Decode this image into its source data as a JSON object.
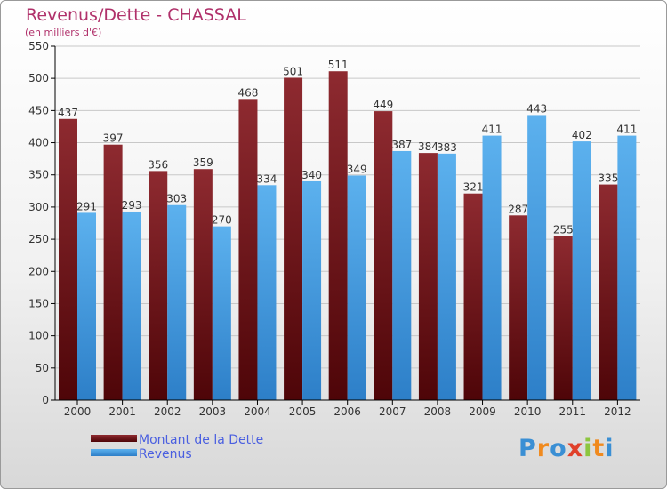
{
  "chart_data": {
    "type": "bar",
    "title": "Revenus/Dette - CHASSAL",
    "subtitle": "(en milliers d'€)",
    "categories": [
      "2000",
      "2001",
      "2002",
      "2003",
      "2004",
      "2005",
      "2006",
      "2007",
      "2008",
      "2009",
      "2010",
      "2011",
      "2012"
    ],
    "series": [
      {
        "name": "Montant de la Dette",
        "values": [
          437,
          397,
          356,
          359,
          468,
          501,
          511,
          449,
          384,
          321,
          287,
          255,
          335
        ],
        "color": "#7a1a1f"
      },
      {
        "name": "Revenus",
        "values": [
          291,
          293,
          303,
          270,
          334,
          340,
          349,
          387,
          383,
          411,
          443,
          402,
          411
        ],
        "color": "#4aa3e6"
      }
    ],
    "ylim": [
      0,
      550
    ],
    "yticks": [
      0,
      50,
      100,
      150,
      200,
      250,
      300,
      350,
      400,
      450,
      500,
      550
    ],
    "grid": true,
    "legend_position": "bottom-left"
  },
  "logo": {
    "letters": [
      "P",
      "r",
      "o",
      "x",
      "i",
      "t",
      "i"
    ],
    "colors": [
      "#3a8fd4",
      "#f08a1e",
      "#3a8fd4",
      "#e0402a",
      "#8cc63f",
      "#f08a1e",
      "#3a8fd4"
    ]
  }
}
